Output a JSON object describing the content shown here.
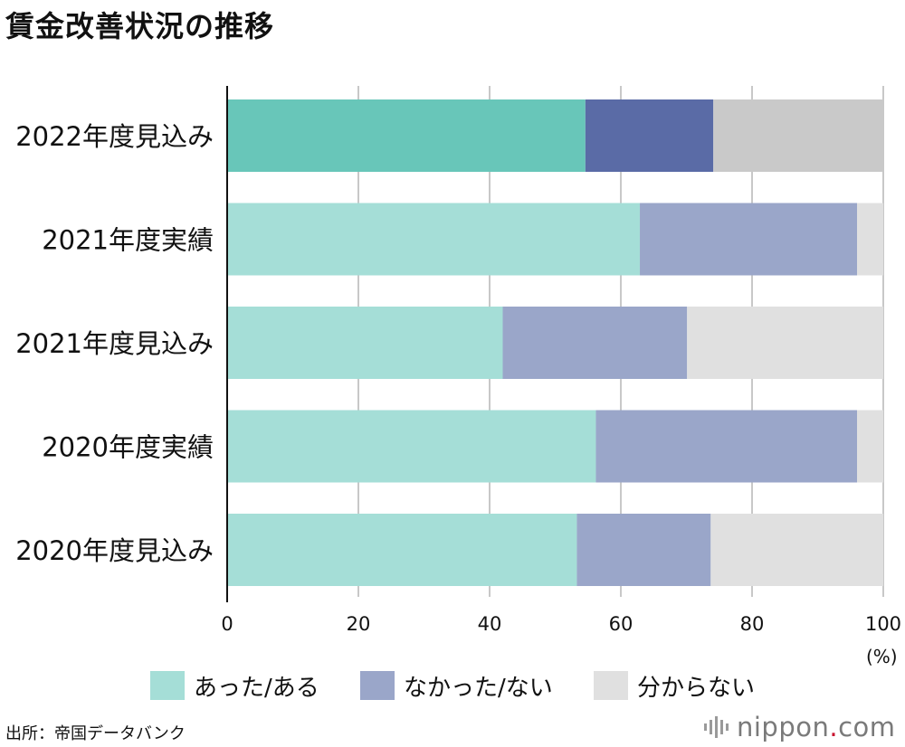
{
  "title": "賃金改善状況の推移",
  "unit_label": "(%)",
  "source": "出所：帝国データバンク",
  "brand": {
    "name": "nippon",
    "dot": ".",
    "tld": "com"
  },
  "legend": [
    {
      "label": "あった/ある",
      "color": "#a5ded7"
    },
    {
      "label": "なかった/ない",
      "color": "#9aa6c9"
    },
    {
      "label": "分からない",
      "color": "#e0e0e0"
    }
  ],
  "chart_data": {
    "type": "bar",
    "orientation": "horizontal",
    "stacked": true,
    "title": "賃金改善状況の推移",
    "xlabel": "(%)",
    "ylabel": "",
    "xlim": [
      0,
      100
    ],
    "xticks": [
      0,
      20,
      40,
      60,
      80,
      100
    ],
    "grid": true,
    "legend_position": "bottom",
    "categories": [
      "2022年度見込み",
      "2021年度実績",
      "2021年度見込み",
      "2020年度実績",
      "2020年度見込み"
    ],
    "highlight_category": "2022年度見込み",
    "highlight_colors": [
      "#68c6b9",
      "#5a6ba6",
      "#c9c9c9"
    ],
    "series": [
      {
        "name": "あった/ある",
        "color": "#a5ded7",
        "values": [
          54.6,
          62.9,
          42.0,
          56.2,
          53.3
        ]
      },
      {
        "name": "なかった/ない",
        "color": "#9aa6c9",
        "values": [
          19.5,
          33.1,
          28.1,
          39.8,
          20.4
        ]
      },
      {
        "name": "分からない",
        "color": "#e0e0e0",
        "values": [
          25.9,
          4.0,
          29.9,
          4.0,
          26.3
        ]
      }
    ]
  }
}
